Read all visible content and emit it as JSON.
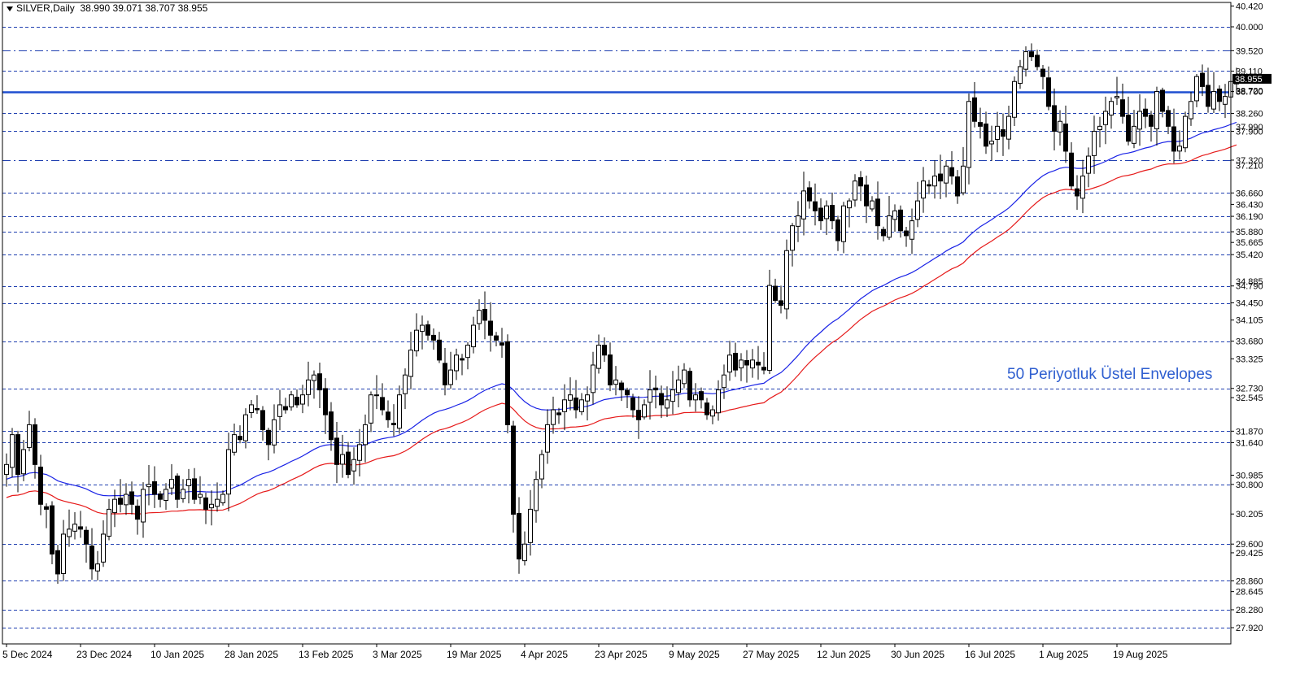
{
  "header": {
    "symbol": "SILVER,Daily",
    "ohlc": "38.990 39.071 38.707 38.955"
  },
  "annotation": "50 Periyotluk Üstel Envelopes",
  "colors": {
    "background": "#ffffff",
    "grid_dashed": "#1f3fb0",
    "candle": "#000000",
    "ema_upper": "#1a23e6",
    "ema_lower": "#e61a1a",
    "highlight_line": "#1f4fd0",
    "annotation": "#2f5fd0"
  },
  "chart_data": {
    "type": "candlestick",
    "price_axis": {
      "range": [
        27.6,
        40.5
      ],
      "tick_labels": [
        "40.420",
        "40.000",
        "39.520",
        "39.110",
        "38.700",
        "38.260",
        "37.900",
        "37.320",
        "36.660",
        "36.430",
        "36.190",
        "35.880",
        "35.665",
        "35.420",
        "34.790",
        "34.450",
        "34.105",
        "33.680",
        "33.325",
        "32.730",
        "32.545",
        "31.870",
        "31.640",
        "30.985",
        "30.800",
        "30.205",
        "29.600",
        "29.425",
        "28.860",
        "28.645",
        "28.280",
        "27.920"
      ],
      "current_price": "38.955",
      "overlapped_labels": [
        "38.720",
        "37.990",
        "37.210",
        "34.885"
      ]
    },
    "level_lines": [
      40.0,
      39.52,
      39.11,
      38.26,
      37.9,
      37.32,
      36.66,
      36.19,
      35.88,
      35.42,
      34.79,
      34.45,
      33.68,
      32.73,
      31.87,
      31.64,
      30.8,
      29.6,
      28.86,
      28.28,
      27.92
    ],
    "highlight_level": 38.7,
    "date_labels": [
      "5 Dec 2024",
      "23 Dec 2024",
      "10 Jan 2025",
      "28 Jan 2025",
      "13 Feb 2025",
      "3 Mar 2025",
      "19 Mar 2025",
      "4 Apr 2025",
      "23 Apr 2025",
      "9 May 2025",
      "27 May 2025",
      "12 Jun 2025",
      "30 Jun 2025",
      "16 Jul 2025",
      "1 Aug 2025",
      "19 Aug 2025"
    ],
    "date_label_bars": [
      0,
      13,
      26,
      39,
      52,
      65,
      78,
      91,
      104,
      117,
      130,
      143,
      156,
      169,
      182,
      195
    ],
    "closes": [
      31.2,
      31.8,
      31.0,
      31.5,
      32.0,
      31.2,
      30.4,
      30.3,
      29.4,
      29.0,
      29.8,
      29.9,
      30.0,
      29.9,
      29.6,
      29.1,
      29.2,
      29.8,
      30.3,
      30.5,
      30.4,
      30.6,
      30.4,
      30.1,
      30.7,
      30.8,
      30.6,
      30.5,
      30.7,
      30.9,
      30.5,
      30.7,
      30.9,
      30.5,
      30.6,
      30.3,
      30.4,
      30.5,
      30.6,
      31.5,
      31.8,
      31.7,
      32.2,
      32.4,
      32.3,
      31.9,
      31.6,
      32.1,
      32.4,
      32.3,
      32.6,
      32.4,
      32.6,
      32.9,
      33.0,
      32.7,
      32.2,
      31.7,
      31.2,
      31.4,
      31.0,
      31.3,
      31.6,
      32.0,
      32.6,
      32.6,
      32.3,
      32.1,
      32.0,
      32.6,
      33.0,
      33.5,
      33.9,
      34.0,
      33.8,
      33.7,
      33.3,
      32.8,
      33.1,
      33.4,
      33.3,
      33.6,
      34.0,
      34.3,
      34.1,
      33.8,
      33.7,
      33.6,
      32.0,
      30.2,
      29.3,
      29.6,
      30.3,
      30.9,
      31.4,
      32.0,
      32.3,
      32.2,
      32.5,
      32.6,
      32.3,
      32.5,
      32.6,
      33.2,
      33.6,
      33.4,
      32.8,
      32.9,
      32.7,
      32.6,
      32.3,
      32.1,
      32.4,
      32.7,
      32.7,
      32.4,
      32.5,
      32.7,
      32.9,
      33.1,
      32.5,
      32.6,
      32.5,
      32.2,
      32.3,
      32.7,
      33.0,
      33.4,
      33.1,
      33.3,
      33.2,
      33.3,
      33.2,
      33.1,
      34.8,
      34.5,
      34.4,
      35.5,
      36.0,
      36.2,
      36.7,
      36.5,
      36.3,
      36.1,
      36.4,
      36.1,
      35.7,
      36.4,
      36.5,
      36.9,
      36.8,
      36.4,
      36.5,
      36.0,
      35.8,
      36.2,
      36.3,
      35.9,
      35.8,
      36.1,
      36.5,
      36.9,
      36.8,
      37.0,
      36.9,
      37.2,
      37.0,
      36.6,
      37.2,
      38.5,
      38.1,
      38.0,
      37.6,
      37.7,
      38.0,
      37.8,
      38.2,
      38.9,
      39.2,
      39.5,
      39.4,
      39.2,
      39.0,
      38.4,
      37.9,
      38.1,
      37.5,
      36.8,
      36.6,
      37.0,
      37.4,
      37.9,
      38.0,
      38.3,
      38.5,
      38.6,
      38.2,
      37.7,
      38.0,
      38.3,
      38.2,
      38.0,
      38.7,
      38.3,
      38.0,
      37.5,
      37.6,
      38.2,
      38.5,
      39.0,
      38.8,
      38.4,
      38.7,
      38.5,
      38.6,
      38.9,
      38.95
    ]
  }
}
